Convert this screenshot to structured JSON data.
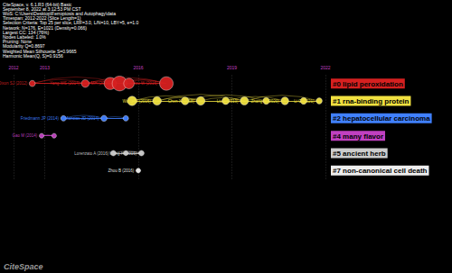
{
  "chart_data": {
    "type": "timeline",
    "header": [
      "CiteSpace, v. 6.1.R3 (64-bit) Basic",
      "September 8, 2022 at 3:12:53 PM CST",
      "WoS: C:\\Users\\Desktop\\Ferroptosis and Autophagy\\data",
      "Timespan: 2012-2022 (Slice Length=1)",
      "Selection Criteria: Top 25 per slice, LRF=3.0, L/N=10, LBY=5, e=1.0",
      "Network: N=176, E=1021 (Density=0.066)",
      "Largest CC: 134 (76%)",
      "Nodes Labeled: 1.0%",
      "Pruning: None",
      "Modularity Q=0.8697",
      "Weighted Mean Silhouette S=0.9665",
      "Harmonic Mean(Q, S)=0.9156"
    ],
    "logo": "CiteSpace",
    "xlim": [
      2012,
      2022
    ],
    "xticks": [
      2012,
      2013,
      2016,
      2019,
      2022
    ],
    "grid": true,
    "series": [
      {
        "name": "#0 lipid peroxidation",
        "color": "#d62020",
        "nodes": [
          {
            "year": 2012.6,
            "citations": 5,
            "label": "Dixon SJ (2012)"
          },
          {
            "year": 2014.3,
            "citations": 8,
            "label": "Yang WS (2014)"
          },
          {
            "year": 2015.1,
            "citations": 20
          },
          {
            "year": 2015.4,
            "citations": 30,
            "label": "Gao MH (2016)"
          },
          {
            "year": 2015.7,
            "citations": 15
          },
          {
            "year": 2016.9,
            "citations": 25,
            "label": "Hou W (2016)"
          }
        ],
        "links": [
          [
            0,
            1
          ],
          [
            1,
            3
          ],
          [
            0,
            3
          ],
          [
            2,
            5
          ],
          [
            3,
            5
          ],
          [
            1,
            5
          ]
        ]
      },
      {
        "name": "#1 rna-binding protein",
        "color": "#f0e040",
        "nodes": [
          {
            "year": 2015.8,
            "citations": 12
          },
          {
            "year": 2016.6,
            "citations": 10,
            "label": "Wang W (2016)"
          },
          {
            "year": 2017.5,
            "citations": 8
          },
          {
            "year": 2018.0,
            "citations": 10,
            "label": "Chen X (2018)"
          },
          {
            "year": 2018.8,
            "citations": 7
          },
          {
            "year": 2019.4,
            "citations": 9,
            "label": "Liu J (2019)"
          },
          {
            "year": 2020.1,
            "citations": 6
          },
          {
            "year": 2020.7,
            "citations": 8,
            "label": "Zhang Y (2020)"
          },
          {
            "year": 2021.3,
            "citations": 6
          },
          {
            "year": 2021.8,
            "citations": 5,
            "label": "Li C (2021)"
          }
        ],
        "links": [
          [
            0,
            1
          ],
          [
            0,
            3
          ],
          [
            1,
            3
          ],
          [
            3,
            5
          ],
          [
            2,
            6
          ],
          [
            5,
            9
          ],
          [
            4,
            7
          ],
          [
            1,
            5
          ]
        ]
      },
      {
        "name": "#2 hepatocellular carcinoma",
        "color": "#4080ff",
        "nodes": [
          {
            "year": 2013.6,
            "citations": 4,
            "label": "Friedmann JP (2014)"
          },
          {
            "year": 2014.9,
            "citations": 5,
            "label": "Mancias JD (2014)"
          },
          {
            "year": 2015.6,
            "citations": 4
          }
        ],
        "links": [
          [
            0,
            1
          ],
          [
            1,
            2
          ]
        ]
      },
      {
        "name": "#4 many flavor",
        "color": "#c040c0",
        "nodes": [
          {
            "year": 2012.9,
            "citations": 3,
            "label": "Gao M (2014)"
          },
          {
            "year": 2013.3,
            "citations": 3
          }
        ],
        "links": [
          [
            0,
            1
          ]
        ]
      },
      {
        "name": "#5 ancient herb",
        "color": "#cccccc",
        "nodes": [
          {
            "year": 2015.2,
            "citations": 4,
            "label": "Lorenzato A (2016)"
          },
          {
            "year": 2015.6,
            "citations": 3
          },
          {
            "year": 2016.1,
            "citations": 4,
            "label": "Wang H (2016)"
          }
        ],
        "links": [
          [
            0,
            2
          ],
          [
            1,
            2
          ]
        ]
      },
      {
        "name": "#7 non-canonical cell death",
        "color": "#eeeeee",
        "nodes": [
          {
            "year": 2016.0,
            "citations": 3,
            "label": "Zhou B (2016)"
          }
        ],
        "links": []
      }
    ]
  }
}
